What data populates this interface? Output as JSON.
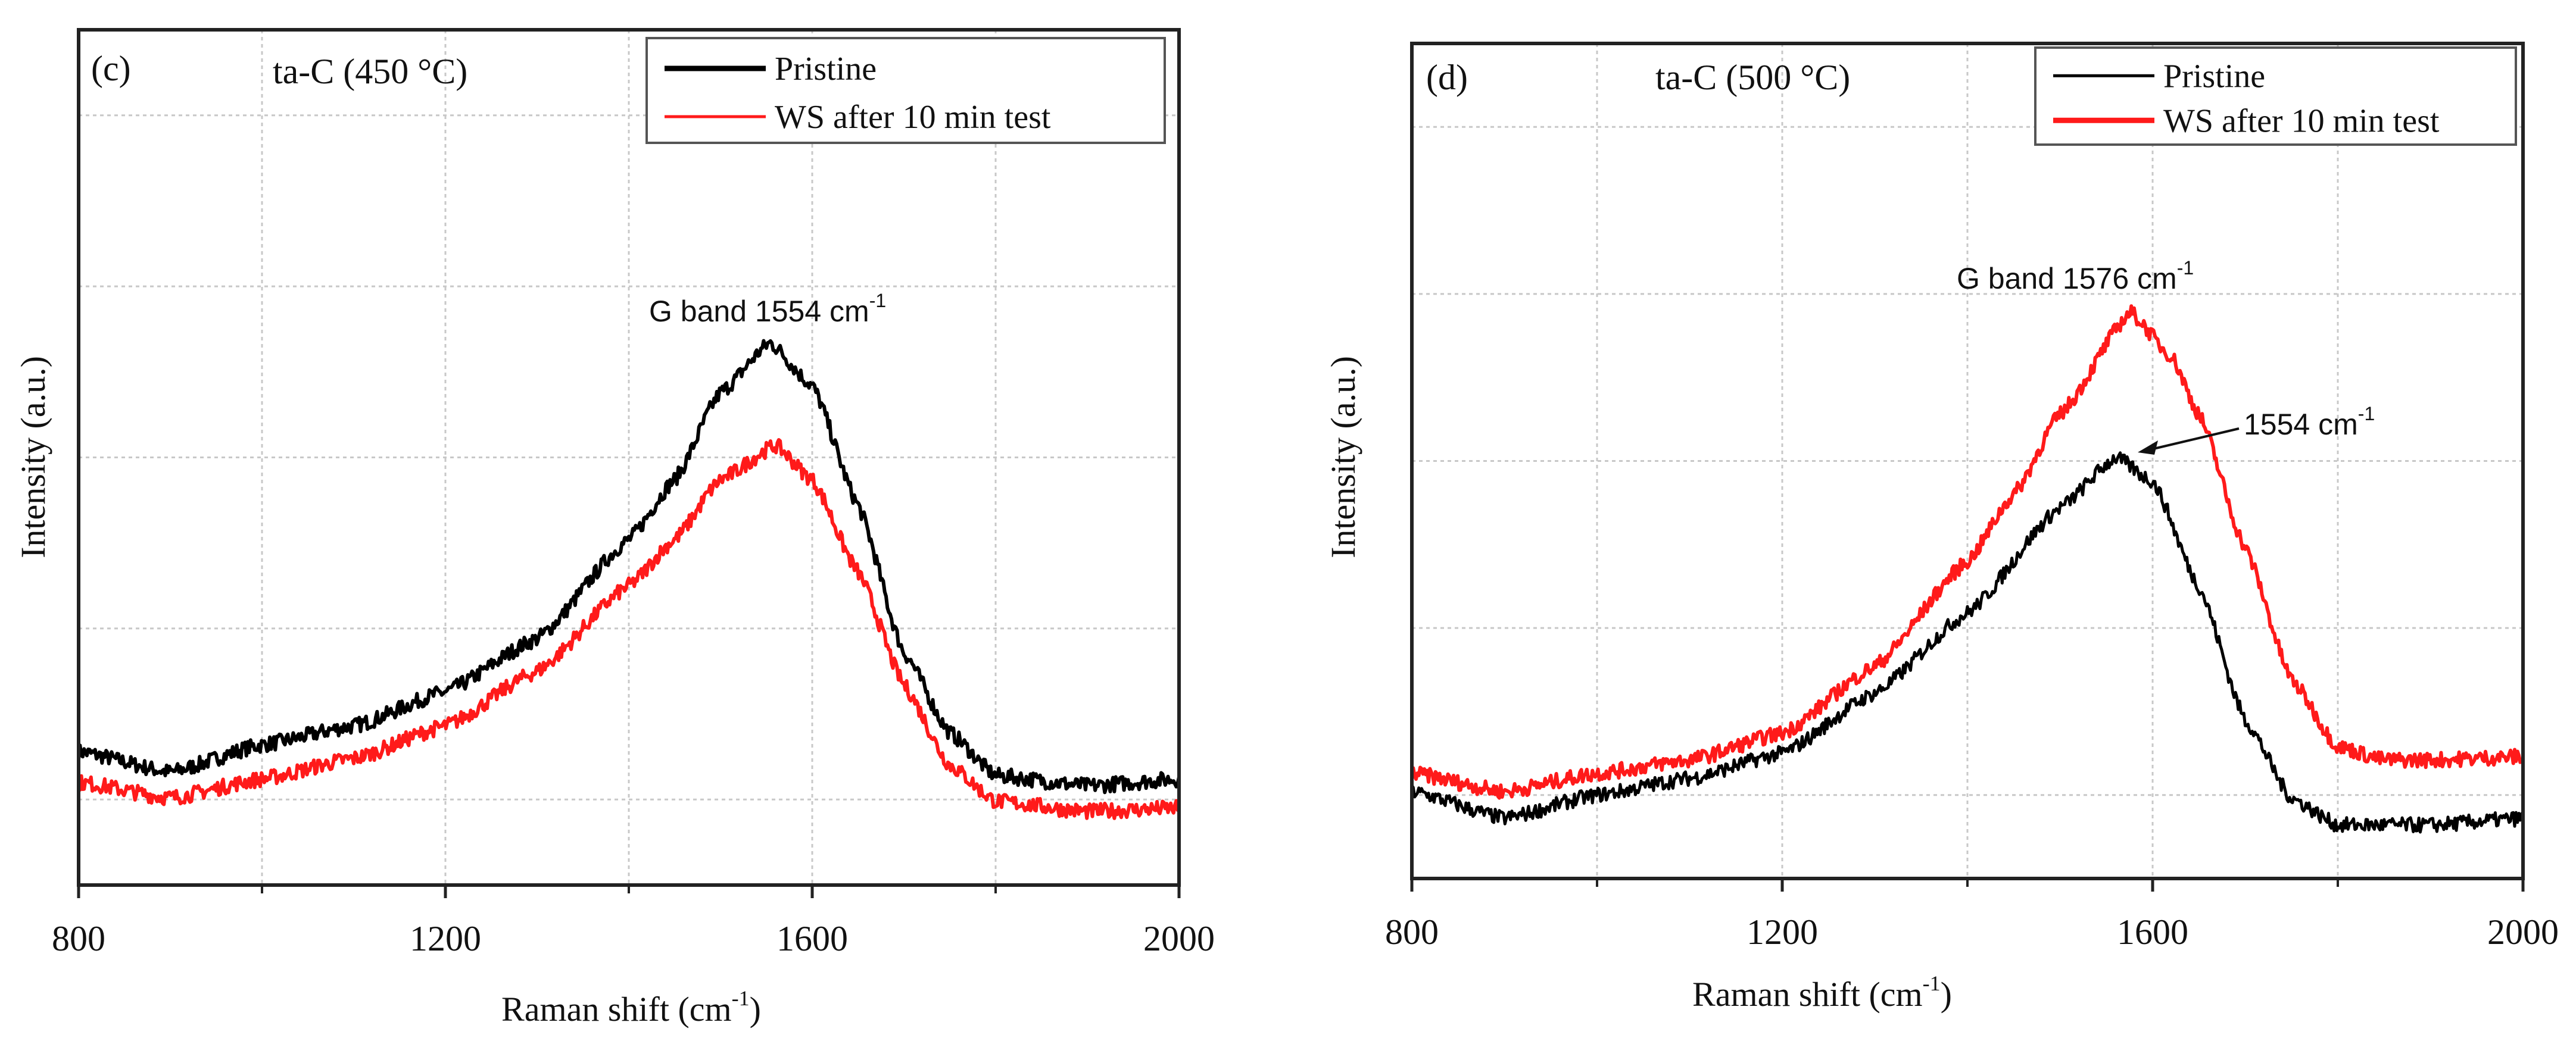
{
  "colors": {
    "pristine": "#000000",
    "ws": "#ff1a1a",
    "axis": "#222222"
  },
  "chart_data": [
    {
      "type": "line",
      "panel_label": "(c)",
      "title": "ta-C (450 °C)",
      "title_main": "ta-C (450 ",
      "title_deg": "o",
      "title_end": "C)",
      "xlabel": "Raman shift (cm",
      "xlabel_sup": "-1",
      "xlabel_end": ")",
      "ylabel": "Intensity (a.u.)",
      "xlim": [
        800,
        2000
      ],
      "ylim": [
        0,
        5
      ],
      "xticks": [
        "800",
        "1200",
        "1600",
        "2000"
      ],
      "xtick_values": [
        800,
        1200,
        1600,
        2000
      ],
      "minor_xticks": [
        1000,
        1400,
        1800
      ],
      "grid": true,
      "legend_position": "top-right",
      "annotations": [
        {
          "text": "G band  1554 cm",
          "sup": "-1",
          "x": 1554
        }
      ],
      "series": [
        {
          "name": "Pristine",
          "color": "#000000",
          "x": [
            800,
            900,
            1000,
            1100,
            1200,
            1300,
            1400,
            1450,
            1500,
            1554,
            1600,
            1650,
            1700,
            1750,
            1800,
            1900,
            2000
          ],
          "y": [
            0.78,
            0.66,
            0.82,
            0.93,
            1.13,
            1.44,
            2.02,
            2.37,
            2.88,
            3.17,
            2.92,
            2.22,
            1.36,
            0.89,
            0.64,
            0.58,
            0.62
          ]
        },
        {
          "name": "WS after 10 min test",
          "color": "#ff1a1a",
          "x": [
            800,
            900,
            1000,
            1100,
            1200,
            1300,
            1400,
            1450,
            1500,
            1560,
            1600,
            1650,
            1700,
            1750,
            1800,
            1900,
            2000
          ],
          "y": [
            0.6,
            0.51,
            0.62,
            0.74,
            0.93,
            1.25,
            1.75,
            2.02,
            2.37,
            2.57,
            2.37,
            1.83,
            1.17,
            0.7,
            0.49,
            0.43,
            0.45
          ]
        }
      ]
    },
    {
      "type": "line",
      "panel_label": "(d)",
      "title": "ta-C (500 °C)",
      "title_main": "ta-C (500 ",
      "title_deg": "o",
      "title_end": "C)",
      "xlabel": "Raman shift (cm",
      "xlabel_sup": "-1",
      "xlabel_end": ")",
      "ylabel": "Intensity (a.u.)",
      "xlim": [
        800,
        2000
      ],
      "ylim": [
        0,
        5
      ],
      "xticks": [
        "800",
        "1200",
        "1600",
        "2000"
      ],
      "xtick_values": [
        800,
        1200,
        1600,
        2000
      ],
      "minor_xticks": [
        1000,
        1400,
        1800
      ],
      "grid": true,
      "legend_position": "top-right",
      "annotations": [
        {
          "text": "G band  1576 cm",
          "sup": "-1",
          "x": 1576
        },
        {
          "text": "1554 cm",
          "sup": "-1",
          "x": 1554
        }
      ],
      "series": [
        {
          "name": "Pristine",
          "color": "#000000",
          "x": [
            800,
            900,
            1000,
            1100,
            1200,
            1300,
            1400,
            1500,
            1560,
            1600,
            1650,
            1700,
            1750,
            1800,
            1900,
            2000
          ],
          "y": [
            0.52,
            0.36,
            0.5,
            0.6,
            0.75,
            1.11,
            1.59,
            2.22,
            2.52,
            2.38,
            1.75,
            0.95,
            0.48,
            0.32,
            0.32,
            0.36
          ]
        },
        {
          "name": "WS after 10 min test",
          "color": "#ff1a1a",
          "x": [
            800,
            900,
            1000,
            1100,
            1200,
            1300,
            1400,
            1450,
            1500,
            1576,
            1620,
            1650,
            1700,
            1750,
            1800,
            1850,
            1900,
            2000
          ],
          "y": [
            0.63,
            0.52,
            0.63,
            0.71,
            0.87,
            1.27,
            1.9,
            2.3,
            2.78,
            3.39,
            3.13,
            2.78,
            1.98,
            1.19,
            0.79,
            0.71,
            0.71,
            0.73
          ]
        }
      ]
    }
  ]
}
